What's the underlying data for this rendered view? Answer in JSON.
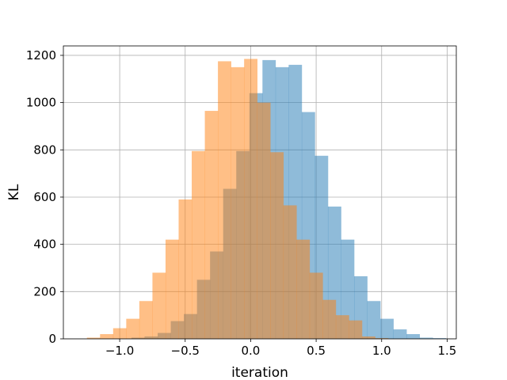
{
  "chart_data": {
    "type": "histogram",
    "title": "",
    "xlabel": "iteration",
    "ylabel": "KL",
    "xlim": [
      -1.43,
      1.57
    ],
    "ylim": [
      0,
      1240
    ],
    "grid": true,
    "legend": "none",
    "xticks": [
      -1.0,
      -0.5,
      0.0,
      0.5,
      1.0,
      1.5
    ],
    "xtick_labels": [
      "−1.0",
      "−0.5",
      "0.0",
      "0.5",
      "1.0",
      "1.5"
    ],
    "yticks": [
      0,
      200,
      400,
      600,
      800,
      1000,
      1200
    ],
    "ytick_labels": [
      "0",
      "200",
      "400",
      "600",
      "800",
      "1000",
      "1200"
    ],
    "series": [
      {
        "color": "#1f77b4",
        "opacity": 0.5,
        "bins": [
          [
            -0.91,
            -0.81,
            5
          ],
          [
            -0.81,
            -0.71,
            10
          ],
          [
            -0.71,
            -0.61,
            25
          ],
          [
            -0.61,
            -0.51,
            75
          ],
          [
            -0.51,
            -0.41,
            105
          ],
          [
            -0.41,
            -0.31,
            250
          ],
          [
            -0.31,
            -0.21,
            370
          ],
          [
            -0.21,
            -0.11,
            635
          ],
          [
            -0.11,
            -0.01,
            795
          ],
          [
            -0.01,
            0.09,
            1040
          ],
          [
            0.09,
            0.19,
            1180
          ],
          [
            0.19,
            0.29,
            1150
          ],
          [
            0.29,
            0.39,
            1160
          ],
          [
            0.39,
            0.49,
            960
          ],
          [
            0.49,
            0.59,
            775
          ],
          [
            0.59,
            0.69,
            560
          ],
          [
            0.69,
            0.79,
            420
          ],
          [
            0.79,
            0.89,
            265
          ],
          [
            0.89,
            0.99,
            160
          ],
          [
            0.99,
            1.09,
            85
          ],
          [
            1.09,
            1.19,
            40
          ],
          [
            1.19,
            1.29,
            20
          ],
          [
            1.29,
            1.39,
            5
          ],
          [
            1.39,
            1.49,
            3
          ]
        ]
      },
      {
        "color": "#ff7f0e",
        "opacity": 0.5,
        "bins": [
          [
            -1.25,
            -1.15,
            5
          ],
          [
            -1.15,
            -1.05,
            20
          ],
          [
            -1.05,
            -0.95,
            45
          ],
          [
            -0.95,
            -0.85,
            85
          ],
          [
            -0.85,
            -0.75,
            160
          ],
          [
            -0.75,
            -0.65,
            280
          ],
          [
            -0.65,
            -0.55,
            420
          ],
          [
            -0.55,
            -0.45,
            590
          ],
          [
            -0.45,
            -0.35,
            795
          ],
          [
            -0.35,
            -0.25,
            965
          ],
          [
            -0.25,
            -0.15,
            1175
          ],
          [
            -0.15,
            -0.05,
            1150
          ],
          [
            -0.05,
            0.05,
            1185
          ],
          [
            0.05,
            0.15,
            1000
          ],
          [
            0.15,
            0.25,
            790
          ],
          [
            0.25,
            0.35,
            565
          ],
          [
            0.35,
            0.45,
            420
          ],
          [
            0.45,
            0.55,
            280
          ],
          [
            0.55,
            0.65,
            165
          ],
          [
            0.65,
            0.75,
            100
          ],
          [
            0.75,
            0.85,
            78
          ],
          [
            0.85,
            0.95,
            10
          ],
          [
            0.95,
            1.05,
            3
          ]
        ]
      }
    ]
  }
}
